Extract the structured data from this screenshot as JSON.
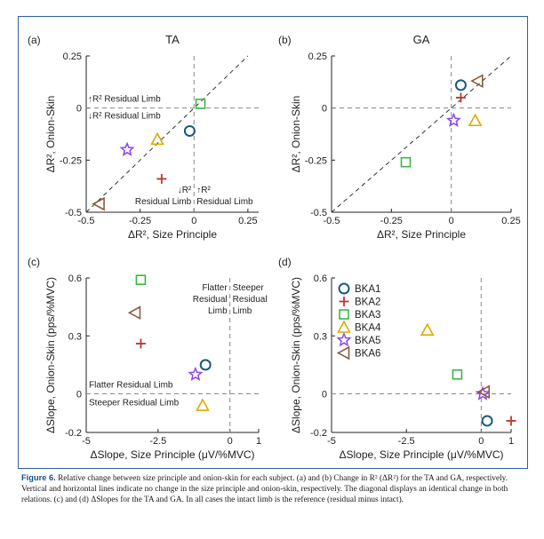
{
  "colors": {
    "BKA1": "#1a5a7a",
    "BKA2": "#c0392b",
    "BKA3": "#3bb54a",
    "BKA4": "#e0a800",
    "BKA5": "#8e44ec",
    "BKA6": "#8b5a3c",
    "frame": "#2f5fa3"
  },
  "legend": {
    "entries": [
      {
        "name": "BKA1",
        "marker": "circle"
      },
      {
        "name": "BKA2",
        "marker": "plus"
      },
      {
        "name": "BKA3",
        "marker": "square"
      },
      {
        "name": "BKA4",
        "marker": "triangle-up"
      },
      {
        "name": "BKA5",
        "marker": "star"
      },
      {
        "name": "BKA6",
        "marker": "triangle-left"
      }
    ]
  },
  "chart_data": [
    {
      "panel": "(a)",
      "title": "TA",
      "type": "scatter",
      "xlabel": "ΔR², Size Principle",
      "ylabel": "ΔR², Onion-Skin",
      "xlim": [
        -0.5,
        0.3
      ],
      "ylim": [
        -0.5,
        0.25
      ],
      "xticks": [
        -0.5,
        -0.25,
        0,
        0.25
      ],
      "xticklabels": [
        "-0.5",
        "-0.25",
        "0",
        "0.25"
      ],
      "yticks": [
        -0.5,
        -0.25,
        0,
        0.25
      ],
      "yticklabels": [
        "-0.5",
        "-0.25",
        "0",
        "0.25"
      ],
      "zero_lines": true,
      "diagonal": true,
      "points": [
        {
          "subject": "BKA1",
          "x": -0.02,
          "y": -0.11
        },
        {
          "subject": "BKA2",
          "x": -0.15,
          "y": -0.34
        },
        {
          "subject": "BKA3",
          "x": 0.03,
          "y": 0.02
        },
        {
          "subject": "BKA4",
          "x": -0.17,
          "y": -0.15
        },
        {
          "subject": "BKA5",
          "x": -0.31,
          "y": -0.2
        },
        {
          "subject": "BKA6",
          "x": -0.44,
          "y": -0.46
        }
      ],
      "annotations": {
        "upper": "↑R² Residual Limb",
        "lower": "↓R² Residual Limb",
        "left_top": "↓R²",
        "left_bottom": "Residual Limb",
        "right_top": "↑R²",
        "right_bottom": "Residual Limb"
      }
    },
    {
      "panel": "(b)",
      "title": "GA",
      "type": "scatter",
      "xlabel": "ΔR², Size Principle",
      "ylabel": "ΔR², Onion-Skin",
      "xlim": [
        -0.5,
        0.25
      ],
      "ylim": [
        -0.5,
        0.25
      ],
      "xticks": [
        -0.5,
        -0.25,
        0,
        0.25
      ],
      "xticklabels": [
        "-0.5",
        "-0.25",
        "0",
        "0.25"
      ],
      "yticks": [
        -0.5,
        -0.25,
        0,
        0.25
      ],
      "yticklabels": [
        "-0.5",
        "-0.25",
        "0",
        "0.25"
      ],
      "zero_lines": true,
      "diagonal": true,
      "points": [
        {
          "subject": "BKA1",
          "x": 0.04,
          "y": 0.11
        },
        {
          "subject": "BKA2",
          "x": 0.04,
          "y": 0.05
        },
        {
          "subject": "BKA3",
          "x": -0.19,
          "y": -0.26
        },
        {
          "subject": "BKA4",
          "x": 0.1,
          "y": -0.06
        },
        {
          "subject": "BKA5",
          "x": 0.01,
          "y": -0.06
        },
        {
          "subject": "BKA6",
          "x": 0.11,
          "y": 0.13
        }
      ]
    },
    {
      "panel": "(c)",
      "type": "scatter",
      "xlabel": "ΔSlope, Size Principle (μV/%MVC)",
      "ylabel": "ΔSlope, Onion-Skin (pps/%MVC)",
      "xlim": [
        -5,
        1
      ],
      "ylim": [
        -0.2,
        0.6
      ],
      "xticks": [
        -5,
        -2.5,
        0,
        1
      ],
      "xticklabels": [
        "-5",
        "-2.5",
        "0",
        "1"
      ],
      "yticks": [
        -0.2,
        0,
        0.3,
        0.6
      ],
      "yticklabels": [
        "-0.2",
        "0",
        "0.3",
        "0.6"
      ],
      "zero_lines": true,
      "diagonal": false,
      "points": [
        {
          "subject": "BKA1",
          "x": -0.85,
          "y": 0.15
        },
        {
          "subject": "BKA2",
          "x": -3.1,
          "y": 0.26
        },
        {
          "subject": "BKA3",
          "x": -3.1,
          "y": 0.59
        },
        {
          "subject": "BKA4",
          "x": -0.95,
          "y": -0.06
        },
        {
          "subject": "BKA5",
          "x": -1.2,
          "y": 0.1
        },
        {
          "subject": "BKA6",
          "x": -3.3,
          "y": 0.42
        }
      ],
      "annotations": {
        "left_top": "Flatter",
        "left_mid": "Residual",
        "left_bottom": "Limb",
        "right_top": "Steeper",
        "right_mid": "Residual",
        "right_bottom": "Limb",
        "upper": "Flatter Residual Limb",
        "lower": "Steeper Residual Limb"
      }
    },
    {
      "panel": "(d)",
      "type": "scatter",
      "xlabel": "ΔSlope, Size Principle (μV/%MVC)",
      "ylabel": "ΔSlope, Onion-Skin (pps/%MVC)",
      "xlim": [
        -5,
        1
      ],
      "ylim": [
        -0.2,
        0.6
      ],
      "xticks": [
        -5,
        -2.5,
        0,
        1
      ],
      "xticklabels": [
        "-5",
        "-2.5",
        "0",
        "1"
      ],
      "yticks": [
        -0.2,
        0,
        0.3,
        0.6
      ],
      "yticklabels": [
        "-0.2",
        "0",
        "0.3",
        "0.6"
      ],
      "zero_lines": true,
      "diagonal": false,
      "points": [
        {
          "subject": "BKA1",
          "x": 0.2,
          "y": -0.14
        },
        {
          "subject": "BKA2",
          "x": 1.0,
          "y": -0.14
        },
        {
          "subject": "BKA3",
          "x": -0.8,
          "y": 0.1
        },
        {
          "subject": "BKA4",
          "x": -1.8,
          "y": 0.33
        },
        {
          "subject": "BKA5",
          "x": 0.05,
          "y": 0.0
        },
        {
          "subject": "BKA6",
          "x": 0.1,
          "y": 0.01
        }
      ]
    }
  ],
  "caption": {
    "label": "Figure 6.",
    "text": " Relative change between size principle and onion-skin for each subject. (a) and (b) Change in R² (ΔR²) for the TA and GA, respectively. Vertical and horizontal lines indicate no change in the size principle and onion-skin, respectively. The diagonal displays an identical change in both relations. (c) and (d) ΔSlopes for the TA and GA. In all cases the intact limb is the reference (residual minus intact)."
  }
}
